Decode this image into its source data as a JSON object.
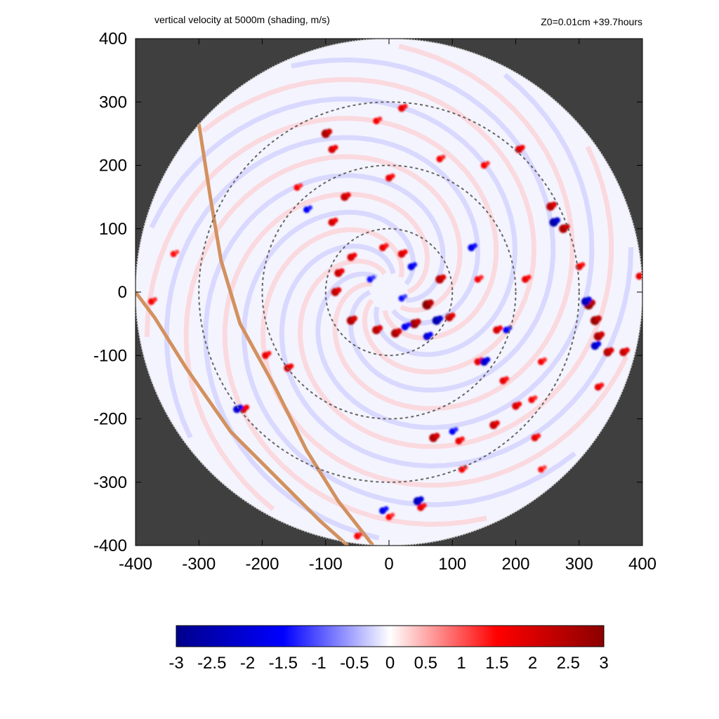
{
  "header": {
    "title": "vertical velocity at 5000m (shading, m/s)",
    "right_label": "Z0=0.01cm  +39.7hours"
  },
  "chart_data": {
    "type": "heatmap",
    "title": "vertical velocity at 5000m (shading, m/s)",
    "annotation": "Z0=0.01cm  +39.7hours",
    "xlim": [
      -400,
      400
    ],
    "ylim": [
      -400,
      400
    ],
    "x_ticks": [
      -400,
      -300,
      -200,
      -100,
      0,
      100,
      200,
      300,
      400
    ],
    "y_ticks": [
      -400,
      -300,
      -200,
      -100,
      0,
      100,
      200,
      300,
      400
    ],
    "domain_radius": 400,
    "range_rings": [
      100,
      200,
      300
    ],
    "background_color": "#3f3f3f",
    "coastline_color": "#d2915f",
    "colorbar": {
      "min": -3,
      "max": 3,
      "ticks": [
        "-3",
        "-2.5",
        "-2",
        "-1.5",
        "-1",
        "-0.5",
        "0",
        "0.5",
        "1",
        "1.5",
        "2",
        "2.5",
        "3"
      ],
      "colors": [
        "#00008b",
        "#0000ff",
        "#ffffff",
        "#ff0000",
        "#8b0000"
      ]
    },
    "coastlines": [
      [
        [
          -300,
          265
        ],
        [
          -282,
          150
        ],
        [
          -265,
          50
        ],
        [
          -235,
          -50
        ],
        [
          -180,
          -150
        ],
        [
          -130,
          -250
        ],
        [
          -80,
          -330
        ],
        [
          -25,
          -400
        ]
      ],
      [
        [
          -400,
          0
        ],
        [
          -370,
          -40
        ],
        [
          -320,
          -120
        ],
        [
          -250,
          -220
        ],
        [
          -170,
          -300
        ],
        [
          -110,
          -360
        ],
        [
          -65,
          -400
        ]
      ]
    ],
    "features": [
      {
        "type": "updraft",
        "x": 60,
        "y": -20,
        "w": 3.0
      },
      {
        "type": "updraft",
        "x": 40,
        "y": -50,
        "w": 2.8
      },
      {
        "type": "updraft",
        "x": 10,
        "y": -65,
        "w": 2.6
      },
      {
        "type": "updraft",
        "x": -20,
        "y": -60,
        "w": 2.4
      },
      {
        "type": "updraft",
        "x": -60,
        "y": -45,
        "w": 2.5
      },
      {
        "type": "updraft",
        "x": -85,
        "y": 0,
        "w": 2.3
      },
      {
        "type": "updraft",
        "x": -80,
        "y": 30,
        "w": 2.2
      },
      {
        "type": "updraft",
        "x": 80,
        "y": 20,
        "w": 2.4
      },
      {
        "type": "updraft",
        "x": 95,
        "y": -40,
        "w": 2.2
      },
      {
        "type": "updraft",
        "x": 20,
        "y": 60,
        "w": 2.0
      },
      {
        "type": "updraft",
        "x": -10,
        "y": 70,
        "w": 1.8
      },
      {
        "type": "updraft",
        "x": 140,
        "y": 20,
        "w": 1.6
      },
      {
        "type": "updraft",
        "x": 140,
        "y": -110,
        "w": 1.8
      },
      {
        "type": "updraft",
        "x": 170,
        "y": -60,
        "w": 2.0
      },
      {
        "type": "updraft",
        "x": 180,
        "y": -140,
        "w": 1.8
      },
      {
        "type": "updraft",
        "x": 165,
        "y": -210,
        "w": 2.2
      },
      {
        "type": "updraft",
        "x": 110,
        "y": -235,
        "w": 1.8
      },
      {
        "type": "updraft",
        "x": 70,
        "y": -230,
        "w": 2.5
      },
      {
        "type": "updraft",
        "x": 115,
        "y": -280,
        "w": 1.6
      },
      {
        "type": "updraft",
        "x": 50,
        "y": -340,
        "w": 1.8
      },
      {
        "type": "updraft",
        "x": 0,
        "y": -355,
        "w": 1.5
      },
      {
        "type": "updraft",
        "x": -50,
        "y": -385,
        "w": 1.6
      },
      {
        "type": "updraft",
        "x": -60,
        "y": 55,
        "w": 2.0
      },
      {
        "type": "updraft",
        "x": -90,
        "y": 110,
        "w": 2.0
      },
      {
        "type": "updraft",
        "x": -70,
        "y": 150,
        "w": 2.2
      },
      {
        "type": "updraft",
        "x": 0,
        "y": 180,
        "w": 1.8
      },
      {
        "type": "updraft",
        "x": -100,
        "y": 250,
        "w": 2.6
      },
      {
        "type": "updraft",
        "x": -90,
        "y": 225,
        "w": 2.0
      },
      {
        "type": "updraft",
        "x": 20,
        "y": 290,
        "w": 1.8
      },
      {
        "type": "updraft",
        "x": -20,
        "y": 270,
        "w": 1.6
      },
      {
        "type": "updraft",
        "x": 80,
        "y": 210,
        "w": 1.6
      },
      {
        "type": "updraft",
        "x": 150,
        "y": 200,
        "w": 1.6
      },
      {
        "type": "updraft",
        "x": 205,
        "y": 225,
        "w": 2.0
      },
      {
        "type": "updraft",
        "x": 255,
        "y": 135,
        "w": 2.4
      },
      {
        "type": "updraft",
        "x": 275,
        "y": 100,
        "w": 2.6
      },
      {
        "type": "updraft",
        "x": 315,
        "y": -20,
        "w": 3.0
      },
      {
        "type": "updraft",
        "x": 325,
        "y": -45,
        "w": 2.8
      },
      {
        "type": "updraft",
        "x": 330,
        "y": -70,
        "w": 2.6
      },
      {
        "type": "updraft",
        "x": 345,
        "y": -95,
        "w": 2.4
      },
      {
        "type": "updraft",
        "x": 370,
        "y": -95,
        "w": 2.2
      },
      {
        "type": "updraft",
        "x": 330,
        "y": -150,
        "w": 1.8
      },
      {
        "type": "updraft",
        "x": 240,
        "y": -110,
        "w": 1.6
      },
      {
        "type": "updraft",
        "x": 230,
        "y": -230,
        "w": 1.8
      },
      {
        "type": "updraft",
        "x": 225,
        "y": -170,
        "w": 1.6
      },
      {
        "type": "updraft",
        "x": -230,
        "y": -185,
        "w": 2.0
      },
      {
        "type": "updraft",
        "x": -160,
        "y": -120,
        "w": 2.0
      },
      {
        "type": "updraft",
        "x": -195,
        "y": -100,
        "w": 1.8
      },
      {
        "type": "updraft",
        "x": -145,
        "y": 165,
        "w": 1.5
      },
      {
        "type": "updraft",
        "x": -375,
        "y": -15,
        "w": 1.6
      },
      {
        "type": "updraft",
        "x": -340,
        "y": 60,
        "w": 1.4
      },
      {
        "type": "updraft",
        "x": 395,
        "y": 25,
        "w": 1.8
      },
      {
        "type": "updraft",
        "x": 300,
        "y": 40,
        "w": 1.8
      },
      {
        "type": "updraft",
        "x": 215,
        "y": 20,
        "w": 1.8
      },
      {
        "type": "updraft",
        "x": 200,
        "y": -180,
        "w": 2.0
      },
      {
        "type": "updraft",
        "x": 240,
        "y": -280,
        "w": 1.4
      },
      {
        "type": "downdraft",
        "x": 75,
        "y": -45,
        "w": -2.6
      },
      {
        "type": "downdraft",
        "x": 60,
        "y": -70,
        "w": -2.0
      },
      {
        "type": "downdraft",
        "x": 35,
        "y": 40,
        "w": -1.8
      },
      {
        "type": "downdraft",
        "x": 25,
        "y": -55,
        "w": -1.8
      },
      {
        "type": "downdraft",
        "x": -30,
        "y": 20,
        "w": -1.4
      },
      {
        "type": "downdraft",
        "x": 130,
        "y": 70,
        "w": -1.8
      },
      {
        "type": "downdraft",
        "x": 150,
        "y": -110,
        "w": -2.2
      },
      {
        "type": "downdraft",
        "x": 260,
        "y": 110,
        "w": -2.6
      },
      {
        "type": "downdraft",
        "x": 310,
        "y": -15,
        "w": -2.4
      },
      {
        "type": "downdraft",
        "x": 325,
        "y": -85,
        "w": -2.2
      },
      {
        "type": "downdraft",
        "x": 45,
        "y": -330,
        "w": -2.4
      },
      {
        "type": "downdraft",
        "x": -10,
        "y": -345,
        "w": -1.8
      },
      {
        "type": "downdraft",
        "x": 100,
        "y": -220,
        "w": -1.6
      },
      {
        "type": "downdraft",
        "x": -130,
        "y": 130,
        "w": -1.6
      },
      {
        "type": "downdraft",
        "x": -240,
        "y": -185,
        "w": -2.0
      },
      {
        "type": "downdraft",
        "x": 185,
        "y": -60,
        "w": -1.6
      },
      {
        "type": "downdraft",
        "x": 20,
        "y": -10,
        "w": -1.4
      }
    ]
  }
}
